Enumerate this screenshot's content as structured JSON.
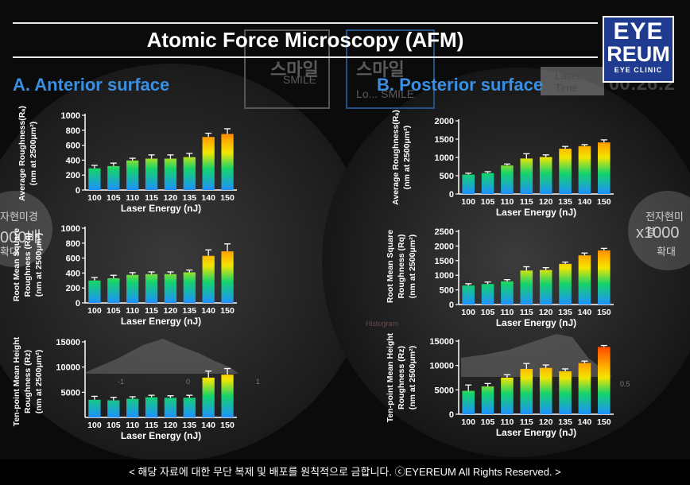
{
  "header": {
    "title": "Atomic Force Microscopy (AFM)"
  },
  "logo": {
    "line1": "EYE",
    "line2": "REUM",
    "line3": "EYE CLINIC"
  },
  "sections": {
    "a": "A. Anterior surface",
    "b": "B. Posterior surface"
  },
  "background": {
    "smile1": "스마일",
    "smile1_en": "SMILE",
    "smile2": "스마일",
    "smile2_en": "Lo... SMILE",
    "laser_time": "Laser Time",
    "timer": "00:26:2",
    "em_left_1": "자현미경",
    "em_left_2": "000배",
    "em_left_3": "확대",
    "em_right_1": "전자현미경",
    "em_right_2": "x1000",
    "em_right_3": "확대",
    "histogram": "Histogram",
    "axis_m1": "-1",
    "axis_0": "0",
    "axis_1": "1",
    "axis_05": "0.5"
  },
  "footer": {
    "text": "< 해당 자료에 대한 무단 복제 및 배포를 원칙적으로 금합니다. ⓒEYEREUM All Rights Reserved. >"
  },
  "colors": {
    "accent": "#3b8fe0",
    "logo_bg": "#1f3b8f",
    "grad_top": "#ff2a00",
    "grad_mid": "#f2e600",
    "grad_low": "#14d36b",
    "grad_bottom": "#1e90ff"
  },
  "chart_data": [
    {
      "id": "a1",
      "type": "bar",
      "panel": "A. Anterior surface",
      "categories": [
        "100",
        "105",
        "110",
        "115",
        "120",
        "135",
        "140",
        "150"
      ],
      "values": [
        290,
        320,
        395,
        420,
        420,
        440,
        710,
        750
      ],
      "errors": [
        40,
        40,
        30,
        50,
        50,
        50,
        50,
        70
      ],
      "ylabel_lines": [
        "Average Roughness(Rₐ)",
        "(nm at 2500μm²)"
      ],
      "xlabel": "Laser Energy (nJ)",
      "ylim": [
        0,
        1000
      ],
      "yticks": [
        "0",
        "200",
        "400",
        "600",
        "800",
        "1000"
      ],
      "ytick_values": [
        0,
        200,
        400,
        600,
        800,
        1000
      ]
    },
    {
      "id": "a2",
      "type": "bar",
      "panel": "A. Anterior surface",
      "categories": [
        "100",
        "105",
        "110",
        "115",
        "120",
        "135",
        "140",
        "150"
      ],
      "values": [
        300,
        330,
        375,
        385,
        385,
        410,
        630,
        690
      ],
      "errors": [
        40,
        40,
        30,
        30,
        30,
        30,
        80,
        100
      ],
      "ylabel_lines": [
        "Root Mean Square",
        "Roughness (Rq)",
        "(nm at 2500μm²)"
      ],
      "xlabel": "Laser Energy (nJ)",
      "ylim": [
        0,
        1000
      ],
      "yticks": [
        "0",
        "200",
        "400",
        "600",
        "800",
        "1000"
      ],
      "ytick_values": [
        0,
        200,
        400,
        600,
        800,
        1000
      ]
    },
    {
      "id": "a3",
      "type": "bar",
      "panel": "A. Anterior surface",
      "categories": [
        "100",
        "105",
        "110",
        "115",
        "120",
        "135",
        "140",
        "150"
      ],
      "values": [
        3500,
        3400,
        3700,
        4000,
        3900,
        3900,
        7900,
        8500
      ],
      "errors": [
        700,
        600,
        400,
        400,
        400,
        500,
        1300,
        1200
      ],
      "ylabel_lines": [
        "Ten-point Mean Height",
        "Roughness (Rz)",
        "(nm at 2500μm²)"
      ],
      "xlabel": "Laser Energy (nJ)",
      "ylim": [
        0,
        15000
      ],
      "yticks": [
        "5000",
        "10000",
        "15000"
      ],
      "ytick_values": [
        5000,
        10000,
        15000
      ]
    },
    {
      "id": "b1",
      "type": "bar",
      "panel": "B. Posterior surface",
      "categories": [
        "100",
        "105",
        "110",
        "115",
        "120",
        "135",
        "140",
        "150"
      ],
      "values": [
        530,
        570,
        780,
        970,
        1010,
        1240,
        1310,
        1410
      ],
      "errors": [
        40,
        40,
        40,
        130,
        60,
        60,
        40,
        70
      ],
      "ylabel_lines": [
        "Average Roughness(Rₐ)",
        "(nm at 2500μm²)"
      ],
      "xlabel": "Laser Energy (nJ)",
      "ylim": [
        0,
        2000
      ],
      "yticks": [
        "0",
        "500",
        "1000",
        "1500",
        "2000"
      ],
      "ytick_values": [
        0,
        500,
        1000,
        1500,
        2000
      ]
    },
    {
      "id": "b2",
      "type": "bar",
      "panel": "B. Posterior surface",
      "categories": [
        "100",
        "105",
        "110",
        "115",
        "120",
        "135",
        "140",
        "150"
      ],
      "values": [
        650,
        700,
        790,
        1160,
        1180,
        1390,
        1680,
        1850
      ],
      "errors": [
        60,
        70,
        60,
        130,
        80,
        60,
        80,
        70
      ],
      "ylabel_lines": [
        "Root Mean Square",
        "Roughness (Rq)",
        "(nm at 2500μm²)"
      ],
      "xlabel": "Laser Energy (nJ)",
      "ylim": [
        0,
        2500
      ],
      "yticks": [
        "0",
        "500",
        "1000",
        "1500",
        "2000",
        "2500"
      ],
      "ytick_values": [
        0,
        500,
        1000,
        1500,
        2000,
        2500
      ]
    },
    {
      "id": "b3",
      "type": "bar",
      "panel": "B. Posterior surface",
      "categories": [
        "100",
        "105",
        "110",
        "115",
        "120",
        "135",
        "140",
        "150"
      ],
      "values": [
        4800,
        5700,
        7500,
        9300,
        9500,
        8800,
        10500,
        13800
      ],
      "errors": [
        1200,
        600,
        600,
        1100,
        600,
        500,
        400,
        300
      ],
      "ylabel_lines": [
        "Ten-point Mean Height",
        "Roughness (Rz)",
        "(nm at 2500μm²)"
      ],
      "xlabel": "Laser Energy (nJ)",
      "ylim": [
        0,
        15000
      ],
      "yticks": [
        "0",
        "5000",
        "10000",
        "15000"
      ],
      "ytick_values": [
        0,
        5000,
        10000,
        15000
      ]
    }
  ]
}
